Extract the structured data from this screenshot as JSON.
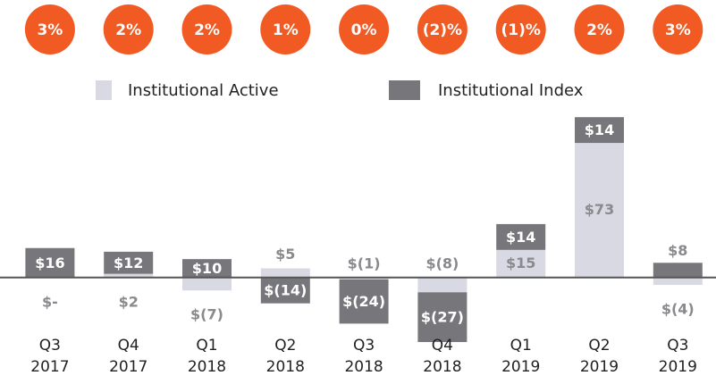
{
  "chart_data": {
    "type": "stacked_bar",
    "growth": {
      "values": [
        3,
        2,
        2,
        1,
        0,
        -2,
        -1,
        2,
        3
      ],
      "value_labels": [
        "3%",
        "2%",
        "2%",
        "1%",
        "0%",
        "(2)%",
        "(1)%",
        "2%",
        "3%"
      ],
      "color": "#f15a22"
    },
    "categories": [
      [
        "Q3",
        "2017"
      ],
      [
        "Q4",
        "2017"
      ],
      [
        "Q1",
        "2018"
      ],
      [
        "Q2",
        "2018"
      ],
      [
        "Q3",
        "2018"
      ],
      [
        "Q4",
        "2018"
      ],
      [
        "Q1",
        "2019"
      ],
      [
        "Q2",
        "2019"
      ],
      [
        "Q3",
        "2019"
      ]
    ],
    "series": [
      {
        "name": "Institutional Active",
        "color": "#d9d9e3",
        "values": [
          0,
          2,
          -7,
          5,
          -1,
          -8,
          15,
          73,
          -4
        ],
        "value_labels": [
          "$-",
          "$2",
          "$(7)",
          "$5",
          "$(1)",
          "$(8)",
          "$15",
          "$73",
          "$(4)"
        ]
      },
      {
        "name": "Institutional Index",
        "color": "#77777b",
        "values": [
          16,
          12,
          10,
          -14,
          -24,
          -27,
          14,
          14,
          8
        ],
        "value_labels": [
          "$16",
          "$12",
          "$10",
          "$(14)",
          "$(24)",
          "$(27)",
          "$14",
          "$14",
          "$8"
        ]
      }
    ],
    "ylim": [
      -50,
      90
    ]
  }
}
